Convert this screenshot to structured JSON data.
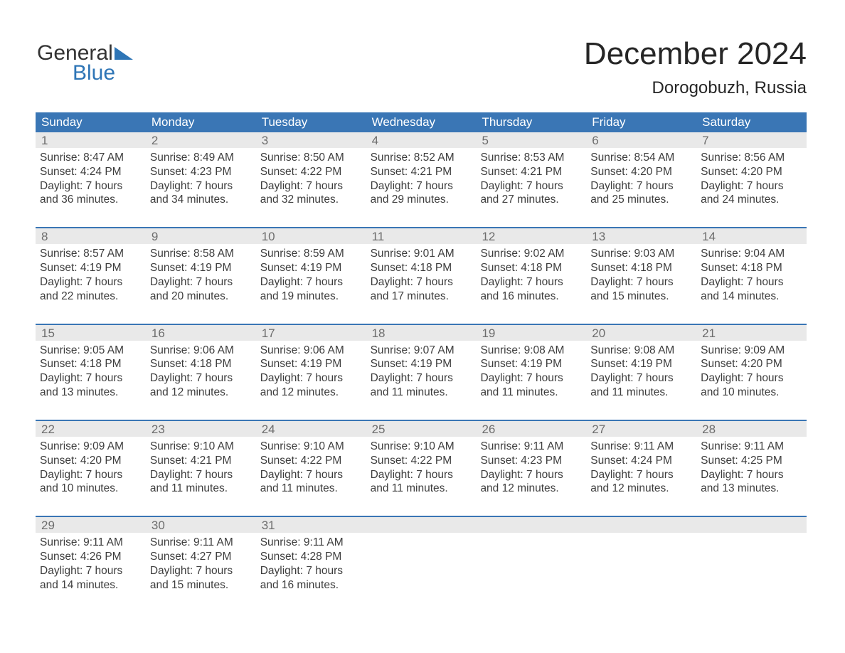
{
  "brand": {
    "line1": "General",
    "line2": "Blue",
    "accent_color": "#2e75b6"
  },
  "header": {
    "title": "December 2024",
    "subtitle": "Dorogobuzh, Russia"
  },
  "colors": {
    "header_bar": "#3a76b5",
    "week_rule": "#3a76b5",
    "daynum_bg": "#e9e9e9",
    "daynum_text": "#6d6d6d",
    "body_text": "#3d3d3d",
    "page_bg": "#ffffff"
  },
  "weekdays": [
    "Sunday",
    "Monday",
    "Tuesday",
    "Wednesday",
    "Thursday",
    "Friday",
    "Saturday"
  ],
  "labels": {
    "sunrise": "Sunrise:",
    "sunset": "Sunset:",
    "daylight": "Daylight:"
  },
  "weeks": [
    [
      {
        "day": "1",
        "sunrise": "8:47 AM",
        "sunset": "4:24 PM",
        "daylight": "7 hours and 36 minutes."
      },
      {
        "day": "2",
        "sunrise": "8:49 AM",
        "sunset": "4:23 PM",
        "daylight": "7 hours and 34 minutes."
      },
      {
        "day": "3",
        "sunrise": "8:50 AM",
        "sunset": "4:22 PM",
        "daylight": "7 hours and 32 minutes."
      },
      {
        "day": "4",
        "sunrise": "8:52 AM",
        "sunset": "4:21 PM",
        "daylight": "7 hours and 29 minutes."
      },
      {
        "day": "5",
        "sunrise": "8:53 AM",
        "sunset": "4:21 PM",
        "daylight": "7 hours and 27 minutes."
      },
      {
        "day": "6",
        "sunrise": "8:54 AM",
        "sunset": "4:20 PM",
        "daylight": "7 hours and 25 minutes."
      },
      {
        "day": "7",
        "sunrise": "8:56 AM",
        "sunset": "4:20 PM",
        "daylight": "7 hours and 24 minutes."
      }
    ],
    [
      {
        "day": "8",
        "sunrise": "8:57 AM",
        "sunset": "4:19 PM",
        "daylight": "7 hours and 22 minutes."
      },
      {
        "day": "9",
        "sunrise": "8:58 AM",
        "sunset": "4:19 PM",
        "daylight": "7 hours and 20 minutes."
      },
      {
        "day": "10",
        "sunrise": "8:59 AM",
        "sunset": "4:19 PM",
        "daylight": "7 hours and 19 minutes."
      },
      {
        "day": "11",
        "sunrise": "9:01 AM",
        "sunset": "4:18 PM",
        "daylight": "7 hours and 17 minutes."
      },
      {
        "day": "12",
        "sunrise": "9:02 AM",
        "sunset": "4:18 PM",
        "daylight": "7 hours and 16 minutes."
      },
      {
        "day": "13",
        "sunrise": "9:03 AM",
        "sunset": "4:18 PM",
        "daylight": "7 hours and 15 minutes."
      },
      {
        "day": "14",
        "sunrise": "9:04 AM",
        "sunset": "4:18 PM",
        "daylight": "7 hours and 14 minutes."
      }
    ],
    [
      {
        "day": "15",
        "sunrise": "9:05 AM",
        "sunset": "4:18 PM",
        "daylight": "7 hours and 13 minutes."
      },
      {
        "day": "16",
        "sunrise": "9:06 AM",
        "sunset": "4:18 PM",
        "daylight": "7 hours and 12 minutes."
      },
      {
        "day": "17",
        "sunrise": "9:06 AM",
        "sunset": "4:19 PM",
        "daylight": "7 hours and 12 minutes."
      },
      {
        "day": "18",
        "sunrise": "9:07 AM",
        "sunset": "4:19 PM",
        "daylight": "7 hours and 11 minutes."
      },
      {
        "day": "19",
        "sunrise": "9:08 AM",
        "sunset": "4:19 PM",
        "daylight": "7 hours and 11 minutes."
      },
      {
        "day": "20",
        "sunrise": "9:08 AM",
        "sunset": "4:19 PM",
        "daylight": "7 hours and 11 minutes."
      },
      {
        "day": "21",
        "sunrise": "9:09 AM",
        "sunset": "4:20 PM",
        "daylight": "7 hours and 10 minutes."
      }
    ],
    [
      {
        "day": "22",
        "sunrise": "9:09 AM",
        "sunset": "4:20 PM",
        "daylight": "7 hours and 10 minutes."
      },
      {
        "day": "23",
        "sunrise": "9:10 AM",
        "sunset": "4:21 PM",
        "daylight": "7 hours and 11 minutes."
      },
      {
        "day": "24",
        "sunrise": "9:10 AM",
        "sunset": "4:22 PM",
        "daylight": "7 hours and 11 minutes."
      },
      {
        "day": "25",
        "sunrise": "9:10 AM",
        "sunset": "4:22 PM",
        "daylight": "7 hours and 11 minutes."
      },
      {
        "day": "26",
        "sunrise": "9:11 AM",
        "sunset": "4:23 PM",
        "daylight": "7 hours and 12 minutes."
      },
      {
        "day": "27",
        "sunrise": "9:11 AM",
        "sunset": "4:24 PM",
        "daylight": "7 hours and 12 minutes."
      },
      {
        "day": "28",
        "sunrise": "9:11 AM",
        "sunset": "4:25 PM",
        "daylight": "7 hours and 13 minutes."
      }
    ],
    [
      {
        "day": "29",
        "sunrise": "9:11 AM",
        "sunset": "4:26 PM",
        "daylight": "7 hours and 14 minutes."
      },
      {
        "day": "30",
        "sunrise": "9:11 AM",
        "sunset": "4:27 PM",
        "daylight": "7 hours and 15 minutes."
      },
      {
        "day": "31",
        "sunrise": "9:11 AM",
        "sunset": "4:28 PM",
        "daylight": "7 hours and 16 minutes."
      },
      {
        "empty": true
      },
      {
        "empty": true
      },
      {
        "empty": true
      },
      {
        "empty": true
      }
    ]
  ]
}
